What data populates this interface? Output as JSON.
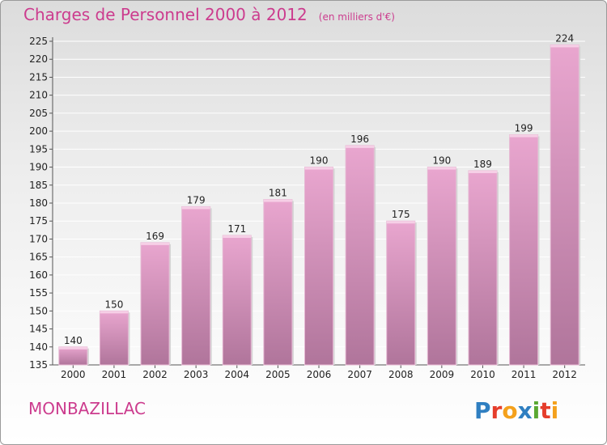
{
  "header": {
    "title": "Charges de Personnel 2000 à 2012",
    "unit": "(en milliers d'€)"
  },
  "footer": {
    "commune": "MONBAZILLAC",
    "logo_text": "Proxiti"
  },
  "colors": {
    "accent": "#cc3c8e",
    "bar_top": "#e9a6cf",
    "bar_bottom": "#b0759b"
  },
  "chart_data": {
    "type": "bar",
    "categories": [
      "2000",
      "2001",
      "2002",
      "2003",
      "2004",
      "2005",
      "2006",
      "2007",
      "2008",
      "2009",
      "2010",
      "2011",
      "2012"
    ],
    "values": [
      140,
      150,
      169,
      179,
      171,
      181,
      190,
      196,
      175,
      190,
      189,
      199,
      224
    ],
    "ylim": [
      135,
      225
    ],
    "yticks": [
      135,
      140,
      145,
      150,
      155,
      160,
      165,
      170,
      175,
      180,
      185,
      190,
      195,
      200,
      205,
      210,
      215,
      220,
      225
    ],
    "grid": true,
    "data_labels": true
  }
}
